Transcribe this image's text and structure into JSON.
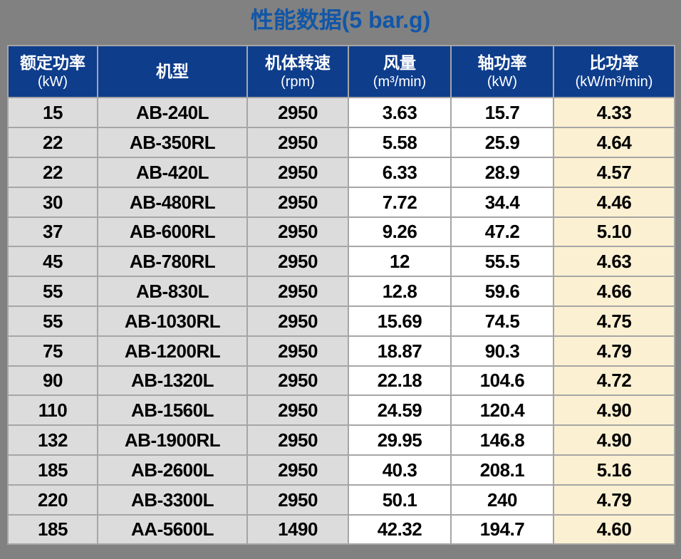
{
  "title": "性能数据(5 bar.g)",
  "table": {
    "columns": [
      {
        "key": "rated-power",
        "label": "额定功率",
        "unit": "(kW)"
      },
      {
        "key": "model",
        "label": "机型",
        "unit": ""
      },
      {
        "key": "speed",
        "label": "机体转速",
        "unit": "(rpm)"
      },
      {
        "key": "flow",
        "label": "风量",
        "unit": "(m³/min)"
      },
      {
        "key": "shaft-power",
        "label": "轴功率",
        "unit": "(kW)"
      },
      {
        "key": "specific-power",
        "label": "比功率",
        "unit": "(kW/m³/min)"
      }
    ],
    "rows": [
      [
        "15",
        "AB-240L",
        "2950",
        "3.63",
        "15.7",
        "4.33"
      ],
      [
        "22",
        "AB-350RL",
        "2950",
        "5.58",
        "25.9",
        "4.64"
      ],
      [
        "22",
        "AB-420L",
        "2950",
        "6.33",
        "28.9",
        "4.57"
      ],
      [
        "30",
        "AB-480RL",
        "2950",
        "7.72",
        "34.4",
        "4.46"
      ],
      [
        "37",
        "AB-600RL",
        "2950",
        "9.26",
        "47.2",
        "5.10"
      ],
      [
        "45",
        "AB-780RL",
        "2950",
        "12",
        "55.5",
        "4.63"
      ],
      [
        "55",
        "AB-830L",
        "2950",
        "12.8",
        "59.6",
        "4.66"
      ],
      [
        "55",
        "AB-1030RL",
        "2950",
        "15.69",
        "74.5",
        "4.75"
      ],
      [
        "75",
        "AB-1200RL",
        "2950",
        "18.87",
        "90.3",
        "4.79"
      ],
      [
        "90",
        "AB-1320L",
        "2950",
        "22.18",
        "104.6",
        "4.72"
      ],
      [
        "110",
        "AB-1560L",
        "2950",
        "24.59",
        "120.4",
        "4.90"
      ],
      [
        "132",
        "AB-1900RL",
        "2950",
        "29.95",
        "146.8",
        "4.90"
      ],
      [
        "185",
        "AB-2600L",
        "2950",
        "40.3",
        "208.1",
        "5.16"
      ],
      [
        "220",
        "AB-3300L",
        "2950",
        "50.1",
        "240",
        "4.79"
      ],
      [
        "185",
        "AA-5600L",
        "1490",
        "42.32",
        "194.7",
        "4.60"
      ]
    ]
  },
  "colors": {
    "page_background": "#818181",
    "title_text": "#1156a8",
    "header_background": "#0e3d8c",
    "header_text": "#ffffff",
    "cell_gray": "#dcdcdc",
    "cell_white": "#ffffff",
    "cell_cream": "#fbf0d1",
    "grid_line": "#a6a6a6",
    "cell_text": "#000000"
  }
}
